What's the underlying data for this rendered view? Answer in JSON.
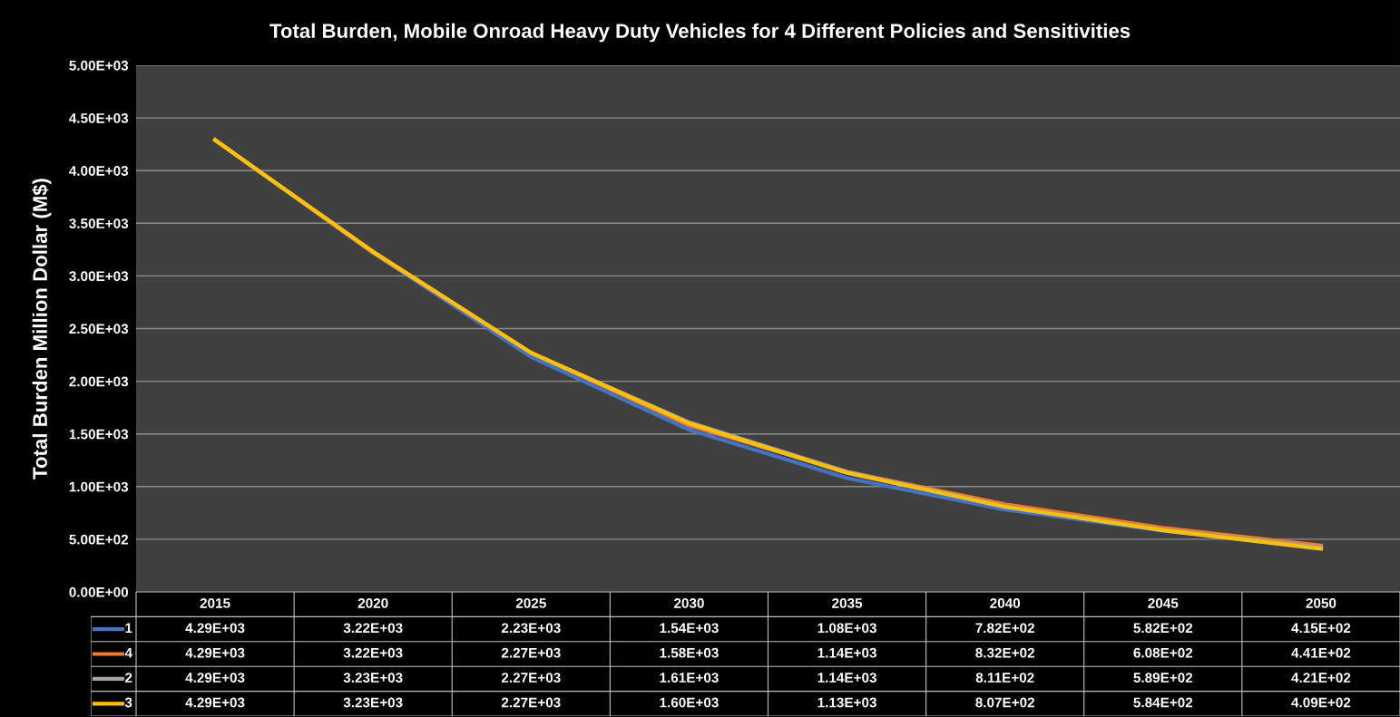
{
  "chart_data": {
    "type": "line",
    "title": "Total Burden, Mobile Onroad Heavy Duty Vehicles for 4 Different Policies and Sensitivities",
    "ylabel": "Total Burden Million Dollar (M$)",
    "categories": [
      "2015",
      "2020",
      "2025",
      "2030",
      "2035",
      "2040",
      "2045",
      "2050"
    ],
    "series": [
      {
        "name": "1",
        "color": "#4472c4",
        "values": [
          4290,
          3220,
          2230,
          1540,
          1080,
          782,
          582,
          415
        ],
        "value_labels": [
          "4.29E+03",
          "3.22E+03",
          "2.23E+03",
          "1.54E+03",
          "1.08E+03",
          "7.82E+02",
          "5.82E+02",
          "4.15E+02"
        ]
      },
      {
        "name": "4",
        "color": "#ed7d31",
        "values": [
          4290,
          3220,
          2270,
          1580,
          1140,
          832,
          608,
          441
        ],
        "value_labels": [
          "4.29E+03",
          "3.22E+03",
          "2.27E+03",
          "1.58E+03",
          "1.14E+03",
          "8.32E+02",
          "6.08E+02",
          "4.41E+02"
        ]
      },
      {
        "name": "2",
        "color": "#a5a5a5",
        "values": [
          4290,
          3230,
          2270,
          1610,
          1140,
          811,
          589,
          421
        ],
        "value_labels": [
          "4.29E+03",
          "3.23E+03",
          "2.27E+03",
          "1.61E+03",
          "1.14E+03",
          "8.11E+02",
          "5.89E+02",
          "4.21E+02"
        ]
      },
      {
        "name": "3",
        "color": "#ffc000",
        "values": [
          4290,
          3230,
          2270,
          1600,
          1130,
          807,
          584,
          409
        ],
        "value_labels": [
          "4.29E+03",
          "3.23E+03",
          "2.27E+03",
          "1.60E+03",
          "1.13E+03",
          "8.07E+02",
          "5.84E+02",
          "4.09E+02"
        ]
      }
    ],
    "ylim": [
      0,
      5000
    ],
    "yticks": [
      {
        "value": 0,
        "label": "0.00E+00"
      },
      {
        "value": 500,
        "label": "5.00E+02"
      },
      {
        "value": 1000,
        "label": "1.00E+03"
      },
      {
        "value": 1500,
        "label": "1.50E+03"
      },
      {
        "value": 2000,
        "label": "2.00E+03"
      },
      {
        "value": 2500,
        "label": "2.50E+03"
      },
      {
        "value": 3000,
        "label": "3.00E+03"
      },
      {
        "value": 3500,
        "label": "3.50E+03"
      },
      {
        "value": 4000,
        "label": "4.00E+03"
      },
      {
        "value": 4500,
        "label": "4.50E+03"
      },
      {
        "value": 5000,
        "label": "5.00E+03"
      }
    ],
    "grid": "y",
    "legend": "bottom",
    "marker": "none",
    "line_style": "solid"
  }
}
